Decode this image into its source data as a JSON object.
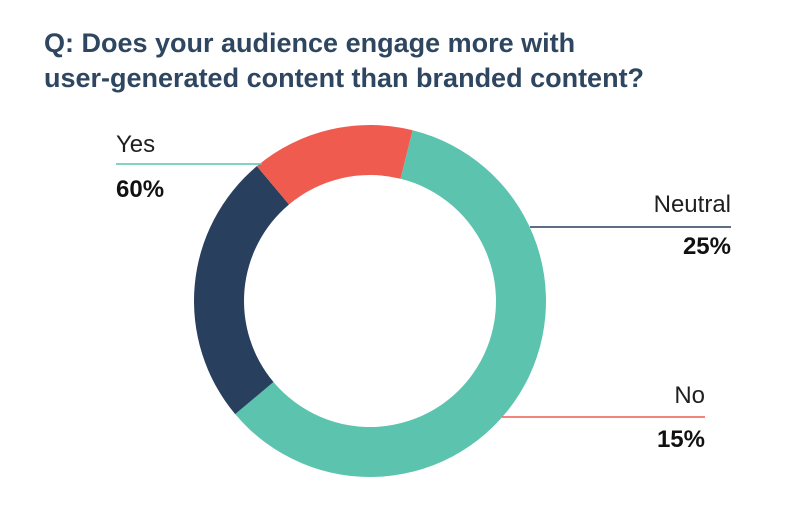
{
  "chart_data": {
    "type": "pie",
    "title_lines": [
      "Q: Does your audience engage more with",
      "user-generated content than branded content?"
    ],
    "slices": [
      {
        "label": "Yes",
        "value": 60,
        "value_label": "60%",
        "color": "#5cc4ae"
      },
      {
        "label": "Neutral",
        "value": 25,
        "value_label": "25%",
        "color": "#283f5e"
      },
      {
        "label": "No",
        "value": 15,
        "value_label": "15%",
        "color": "#f05b50"
      }
    ]
  }
}
